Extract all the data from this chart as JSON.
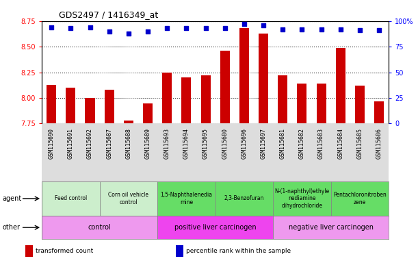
{
  "title": "GDS2497 / 1416349_at",
  "samples": [
    "GSM115690",
    "GSM115691",
    "GSM115692",
    "GSM115687",
    "GSM115688",
    "GSM115689",
    "GSM115693",
    "GSM115694",
    "GSM115695",
    "GSM115680",
    "GSM115696",
    "GSM115697",
    "GSM115681",
    "GSM115682",
    "GSM115683",
    "GSM115684",
    "GSM115685",
    "GSM115686"
  ],
  "transformed_count": [
    8.13,
    8.1,
    8.0,
    8.08,
    7.78,
    7.95,
    8.25,
    8.2,
    8.22,
    8.46,
    8.68,
    8.63,
    8.22,
    8.14,
    8.14,
    8.49,
    8.12,
    7.97
  ],
  "percentile_rank": [
    94,
    93,
    94,
    90,
    88,
    90,
    93,
    93,
    93,
    93,
    97,
    96,
    92,
    92,
    92,
    92,
    91,
    91
  ],
  "ylim_left": [
    7.75,
    8.75
  ],
  "ylim_right": [
    0,
    100
  ],
  "yticks_left": [
    7.75,
    8.0,
    8.25,
    8.5,
    8.75
  ],
  "yticks_right": [
    0,
    25,
    50,
    75,
    100
  ],
  "bar_color": "#cc0000",
  "dot_color": "#0000cc",
  "agent_groups": [
    {
      "label": "Feed control",
      "start": 0,
      "end": 3,
      "color": "#cceecc"
    },
    {
      "label": "Corn oil vehicle\ncontrol",
      "start": 3,
      "end": 6,
      "color": "#cceecc"
    },
    {
      "label": "1,5-Naphthalenedia\nmine",
      "start": 6,
      "end": 9,
      "color": "#66dd66"
    },
    {
      "label": "2,3-Benzofuran",
      "start": 9,
      "end": 12,
      "color": "#66dd66"
    },
    {
      "label": "N-(1-naphthyl)ethyle\nnediamine\ndihydrochloride",
      "start": 12,
      "end": 15,
      "color": "#66dd66"
    },
    {
      "label": "Pentachloronitroben\nzene",
      "start": 15,
      "end": 18,
      "color": "#66dd66"
    }
  ],
  "other_groups": [
    {
      "label": "control",
      "start": 0,
      "end": 6,
      "color": "#ee99ee"
    },
    {
      "label": "positive liver carcinogen",
      "start": 6,
      "end": 12,
      "color": "#ee44ee"
    },
    {
      "label": "negative liver carcinogen",
      "start": 12,
      "end": 18,
      "color": "#ee99ee"
    }
  ],
  "legend_items": [
    {
      "label": "transformed count",
      "color": "#cc0000"
    },
    {
      "label": "percentile rank within the sample",
      "color": "#0000cc"
    }
  ],
  "xtick_bg": "#dddddd",
  "grid_color": "#000000",
  "title_fontsize": 9,
  "tick_fontsize": 7,
  "xtick_fontsize": 6,
  "bar_bottom": 7.75
}
